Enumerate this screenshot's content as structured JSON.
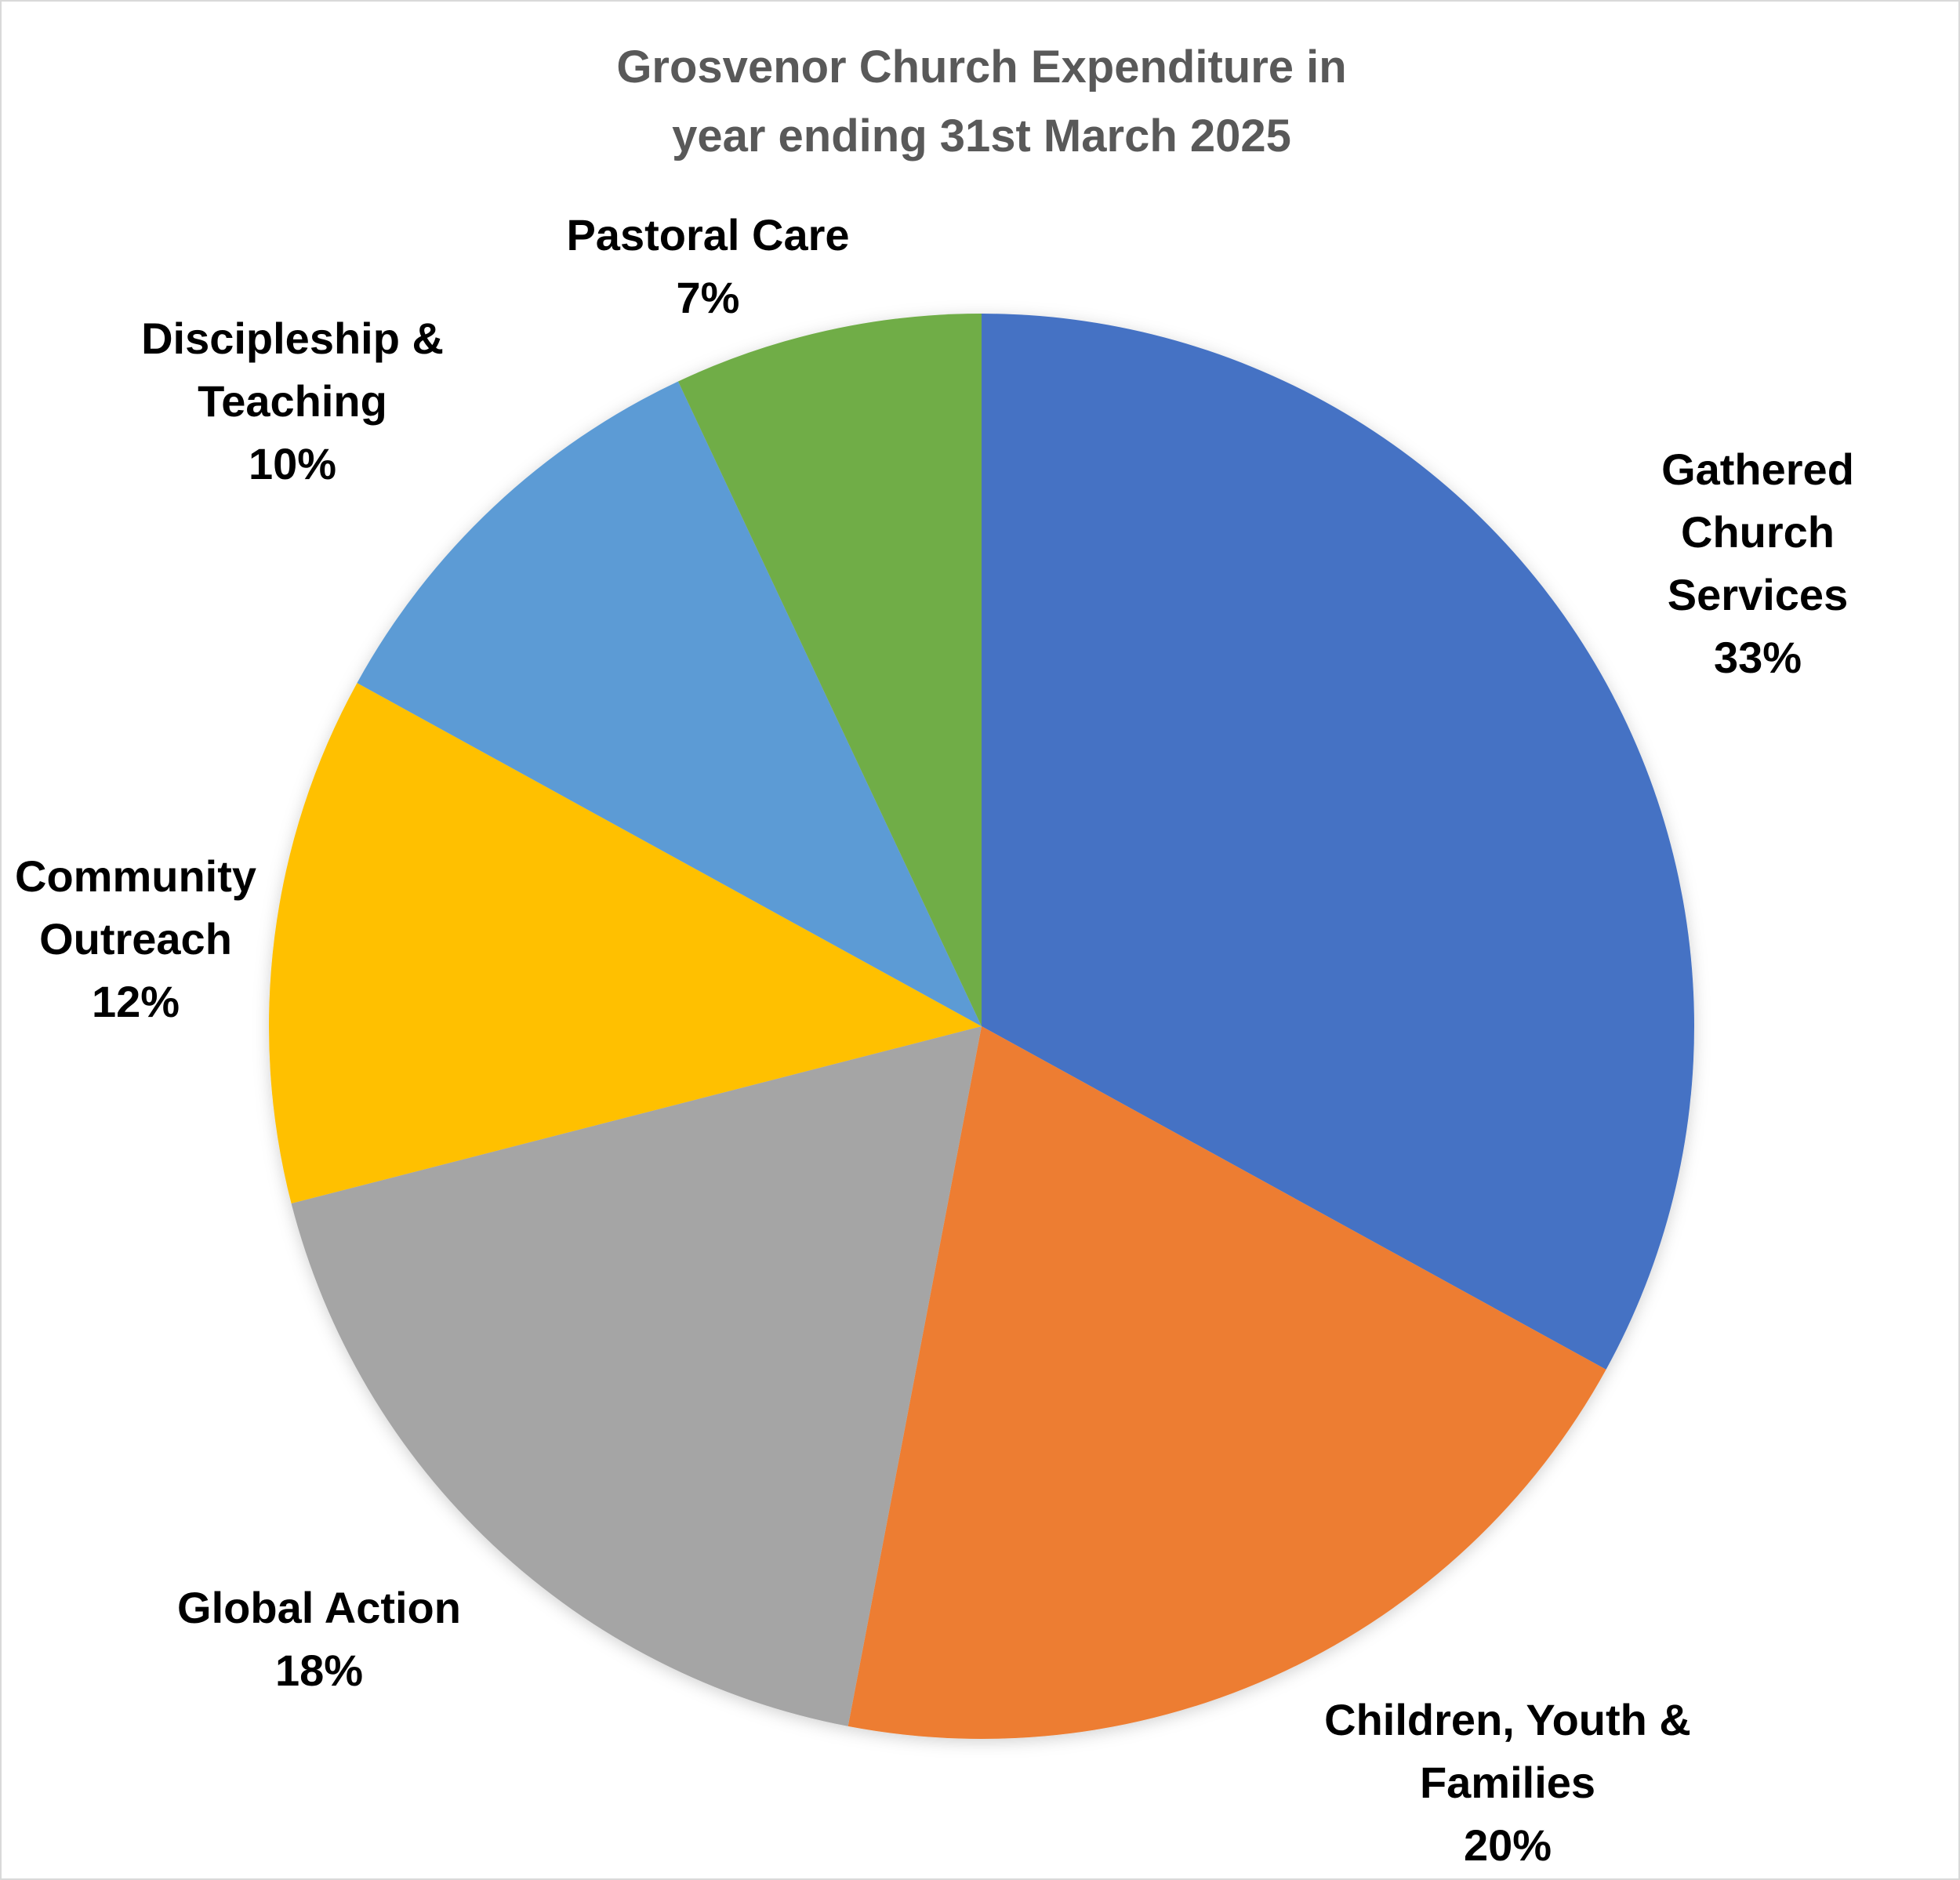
{
  "chart_data": {
    "type": "pie",
    "title": "Grosvenor Church Expenditure in year ending 31st March 2025",
    "categories": [
      "Gathered Church Services",
      "Children, Youth & Families",
      "Global Action",
      "Community Outreach",
      "Discipleship & Teaching",
      "Pastoral Care"
    ],
    "values": [
      33,
      20,
      18,
      12,
      10,
      7
    ],
    "value_labels": [
      "33%",
      "20%",
      "18%",
      "12%",
      "10%",
      "7%"
    ],
    "colors": [
      "#4472c4",
      "#ed7d31",
      "#a5a5a5",
      "#ffc000",
      "#5b9bd5",
      "#70ad47"
    ]
  }
}
